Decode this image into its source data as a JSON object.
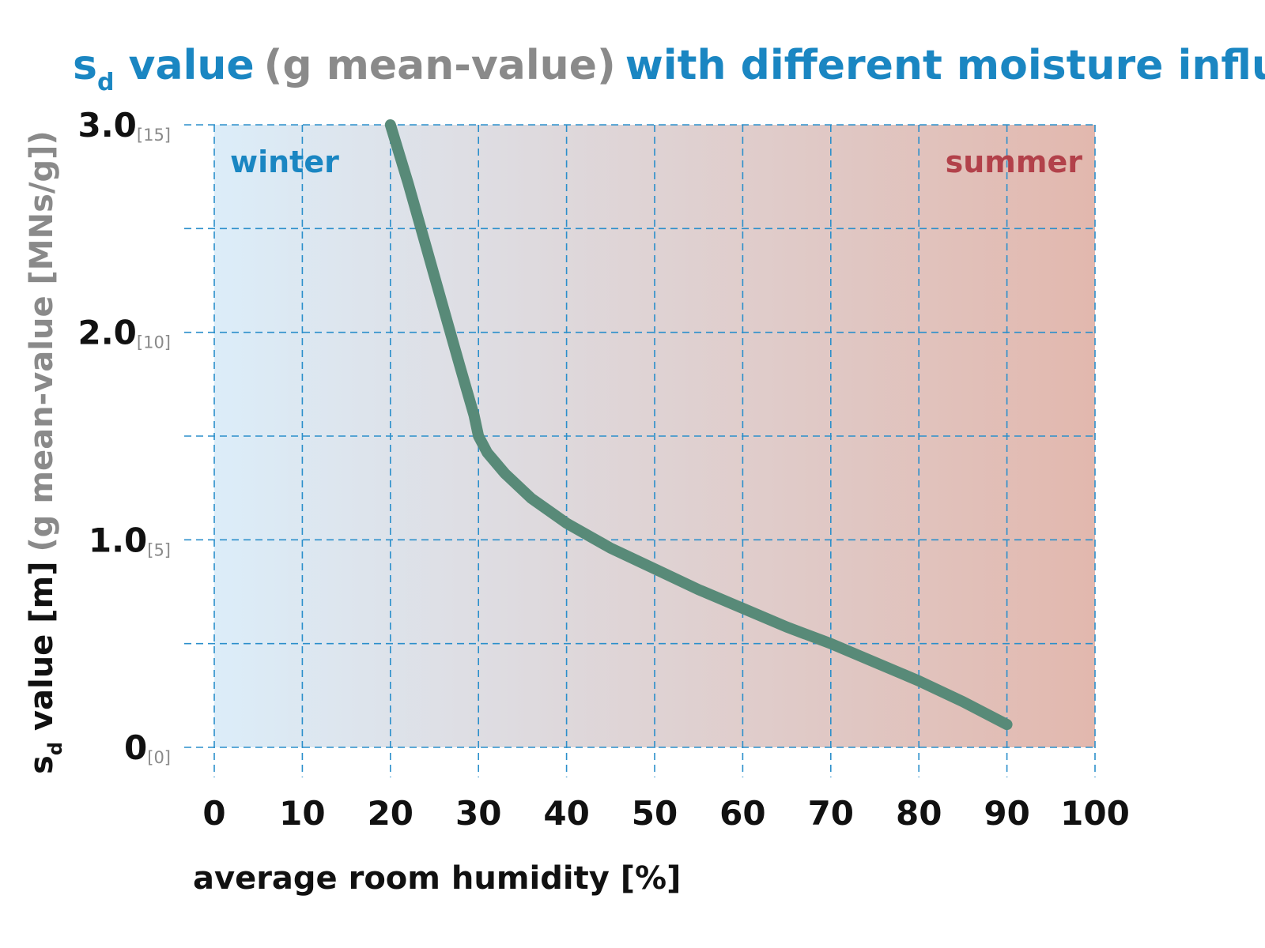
{
  "colors": {
    "accent_blue": "#1a86c2",
    "title_gray": "#8a8a8a",
    "curve": "#588a78",
    "grid": "#2b8fcb",
    "winter": "#1a86c2",
    "summer": "#b2414a",
    "bg_left": "#dcedf9",
    "bg_right": "#e2b8ae"
  },
  "title": {
    "part1_main": "s",
    "part1_sub": "d",
    "part1_rest": " value",
    "part2": "(g mean-value)",
    "part3": "with different moisture influences"
  },
  "ylabel": {
    "main": "s",
    "sub": "d",
    "rest": " value [m]",
    "gray": "(g mean-value [MNs/g])"
  },
  "annotations": {
    "winter": "winter",
    "summer": "summer"
  },
  "chart_data": {
    "type": "line",
    "title": "sd value (g mean-value) with different moisture influences",
    "xlabel": "average room humidity [%]",
    "ylabel": "sd value [m] (g mean-value [MNs/g])",
    "xlim": [
      0,
      100
    ],
    "ylim": [
      0,
      3.0
    ],
    "grid": true,
    "x_ticks": [
      {
        "value": 0,
        "label": "0"
      },
      {
        "value": 10,
        "label": "10"
      },
      {
        "value": 20,
        "label": "20"
      },
      {
        "value": 30,
        "label": "30"
      },
      {
        "value": 40,
        "label": "40"
      },
      {
        "value": 50,
        "label": "50"
      },
      {
        "value": 60,
        "label": "60"
      },
      {
        "value": 70,
        "label": "70"
      },
      {
        "value": 80,
        "label": "80"
      },
      {
        "value": 90,
        "label": "90"
      },
      {
        "value": 100,
        "label": "100"
      }
    ],
    "y_ticks": [
      {
        "value": 0,
        "label": "0",
        "sub": "[0]"
      },
      {
        "value": 1.0,
        "label": "1.0",
        "sub": "[5]"
      },
      {
        "value": 2.0,
        "label": "2.0",
        "sub": "[10]"
      },
      {
        "value": 3.0,
        "label": "3.0",
        "sub": "[15]"
      }
    ],
    "y_minor_grid": [
      0.5,
      1.5,
      2.5
    ],
    "series": [
      {
        "x": [
          20,
          22,
          24,
          26,
          28,
          29.5,
          30,
          31,
          33,
          36,
          40,
          45,
          50,
          55,
          60,
          65,
          70,
          75,
          80,
          85,
          90
        ],
        "y": [
          3.0,
          2.72,
          2.42,
          2.12,
          1.82,
          1.6,
          1.5,
          1.42,
          1.32,
          1.2,
          1.08,
          0.96,
          0.86,
          0.76,
          0.67,
          0.58,
          0.5,
          0.41,
          0.32,
          0.22,
          0.11
        ]
      }
    ]
  }
}
